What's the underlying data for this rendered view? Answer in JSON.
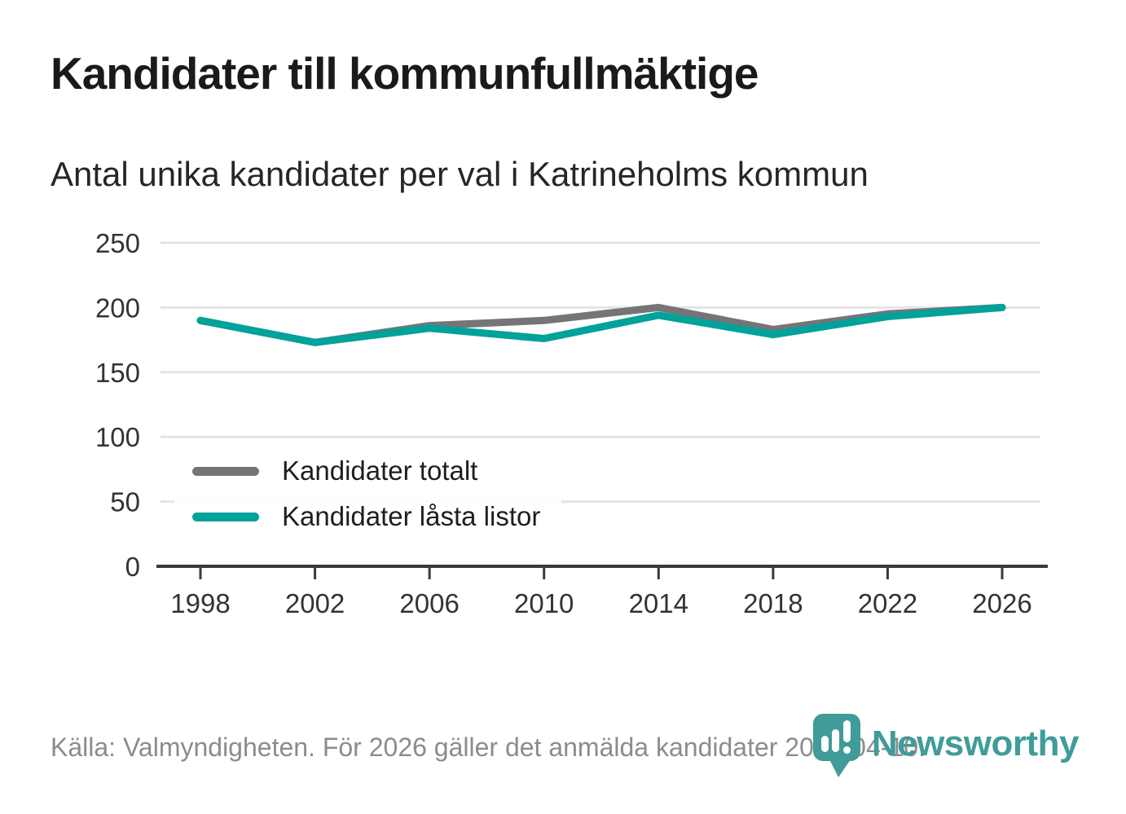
{
  "title": "Kandidater till kommunfullmäktige",
  "subtitle": "Antal unika kandidater per val i Katrineholms kommun",
  "source_note": "Källa: Valmyndigheten. För 2026 gäller det anmälda kandidater 2026-04-10.",
  "branding": {
    "logo_text": "Newsworthy",
    "logo_icon": "bar-chart-pin-icon",
    "brand_color": "#3f9c99"
  },
  "colors": {
    "series_total": "#757578",
    "series_locked": "#00a29a",
    "gridline": "#e4e4e4",
    "axis": "#3a3a3a",
    "tick_text": "#333333",
    "title_text": "#1a1a1a",
    "muted_text": "#8c8c8c"
  },
  "chart_data": {
    "type": "line",
    "title": "Kandidater till kommunfullmäktige",
    "subtitle": "Antal unika kandidater per val i Katrineholms kommun",
    "x": [
      1998,
      2002,
      2006,
      2010,
      2014,
      2018,
      2022,
      2026
    ],
    "series": [
      {
        "name": "Kandidater totalt",
        "color": "#757578",
        "values": [
          190,
          173,
          186,
          190,
          200,
          183,
          195,
          200
        ]
      },
      {
        "name": "Kandidater låsta listor",
        "color": "#00a29a",
        "values": [
          190,
          173,
          184,
          176,
          194,
          179,
          193,
          200
        ]
      }
    ],
    "ylim": [
      0,
      250
    ],
    "yticks": [
      0,
      50,
      100,
      150,
      200,
      250
    ],
    "grid": "horizontal",
    "legend_position": "inside-bottom-left",
    "note": "För 2026 gäller det anmälda kandidater 2026-04-10"
  }
}
